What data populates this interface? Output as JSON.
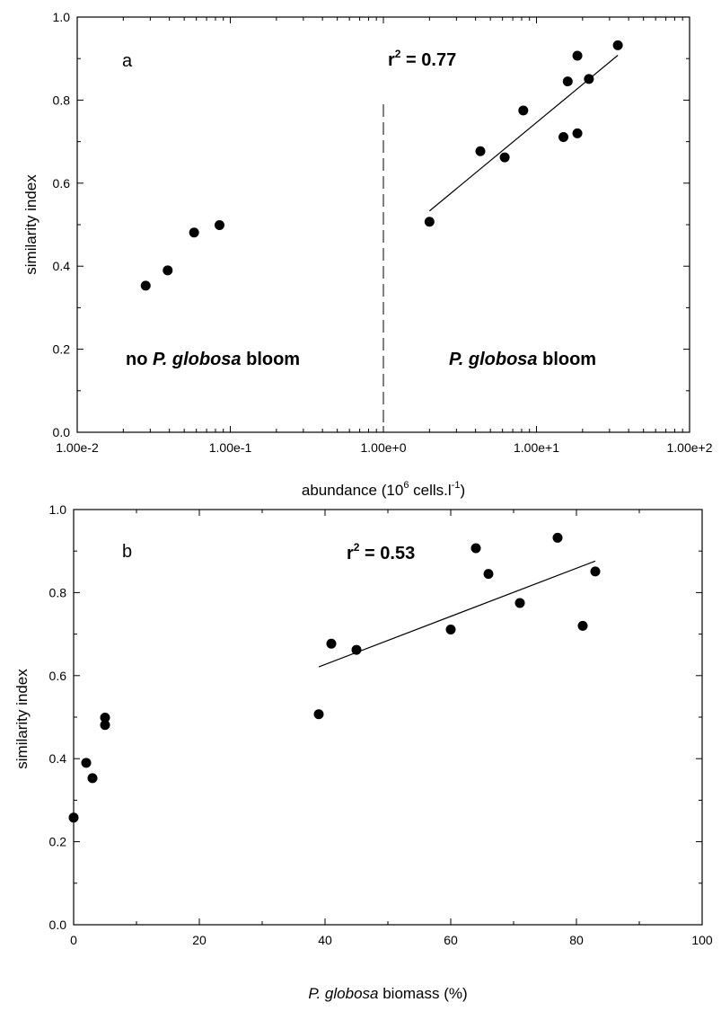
{
  "chart_data": [
    {
      "panel": "a",
      "type": "scatter",
      "x_scale": "log",
      "xlim": [
        0.01,
        100
      ],
      "ylim": [
        0,
        1
      ],
      "xticks": [
        0.01,
        0.1,
        1,
        10,
        100
      ],
      "xtick_labels": [
        "1.00e-2",
        "1.00e-1",
        "1.00e+0",
        "1.00e+1",
        "1.00e+2"
      ],
      "yticks": [
        0,
        0.2,
        0.4,
        0.6,
        0.8,
        1.0
      ],
      "ytick_labels": [
        "0.0",
        "0.2",
        "0.4",
        "0.6",
        "0.8",
        "1.0"
      ],
      "ylabel": "similarity index",
      "xlabel_parts": {
        "pre": "abundance (10",
        "sup1": "6",
        "mid": " cells.l",
        "sup2": "-1",
        "post": ")"
      },
      "annotations": {
        "panel_letter": "a",
        "r2_prefix": "r",
        "r2_exp": "2",
        "r2_value": " = 0.77",
        "left_region": {
          "pre": "no ",
          "italic": "P. globosa",
          "post": " bloom"
        },
        "right_region": {
          "italic": "P. globosa",
          "post": " bloom"
        }
      },
      "divider_x": 1.0,
      "series": [
        {
          "values": [
            [
              0.028,
              0.353
            ],
            [
              0.039,
              0.39
            ],
            [
              0.058,
              0.481
            ],
            [
              0.085,
              0.499
            ],
            [
              2.0,
              0.507
            ],
            [
              4.3,
              0.677
            ],
            [
              6.2,
              0.662
            ],
            [
              8.2,
              0.775
            ],
            [
              15,
              0.711
            ],
            [
              16,
              0.845
            ],
            [
              18.5,
              0.907
            ],
            [
              18.5,
              0.72
            ],
            [
              22,
              0.851
            ],
            [
              34,
              0.932
            ]
          ]
        }
      ],
      "fit_line": {
        "x": [
          2.0,
          34
        ],
        "y": [
          0.533,
          0.908
        ]
      }
    },
    {
      "panel": "b",
      "type": "scatter",
      "x_scale": "linear",
      "xlim": [
        0,
        100
      ],
      "ylim": [
        0,
        1
      ],
      "xticks": [
        0,
        20,
        40,
        60,
        80,
        100
      ],
      "xtick_labels": [
        "0",
        "20",
        "40",
        "60",
        "80",
        "100"
      ],
      "yticks": [
        0,
        0.2,
        0.4,
        0.6,
        0.8,
        1.0
      ],
      "ytick_labels": [
        "0.0",
        "0.2",
        "0.4",
        "0.6",
        "0.8",
        "1.0"
      ],
      "ylabel": "similarity index",
      "xlabel_parts": {
        "italic": "P. globosa",
        "post": " biomass (%)"
      },
      "annotations": {
        "panel_letter": "b",
        "r2_prefix": "r",
        "r2_exp": "2",
        "r2_value": " = 0.53"
      },
      "series": [
        {
          "values": [
            [
              0,
              0.258
            ],
            [
              2,
              0.39
            ],
            [
              3,
              0.353
            ],
            [
              5,
              0.481
            ],
            [
              5,
              0.499
            ],
            [
              39,
              0.507
            ],
            [
              41,
              0.677
            ],
            [
              45,
              0.662
            ],
            [
              60,
              0.711
            ],
            [
              64,
              0.907
            ],
            [
              66,
              0.845
            ],
            [
              71,
              0.775
            ],
            [
              77,
              0.932
            ],
            [
              81,
              0.72
            ],
            [
              83,
              0.851
            ]
          ]
        }
      ],
      "fit_line": {
        "x": [
          39,
          83
        ],
        "y": [
          0.621,
          0.876
        ]
      }
    }
  ]
}
